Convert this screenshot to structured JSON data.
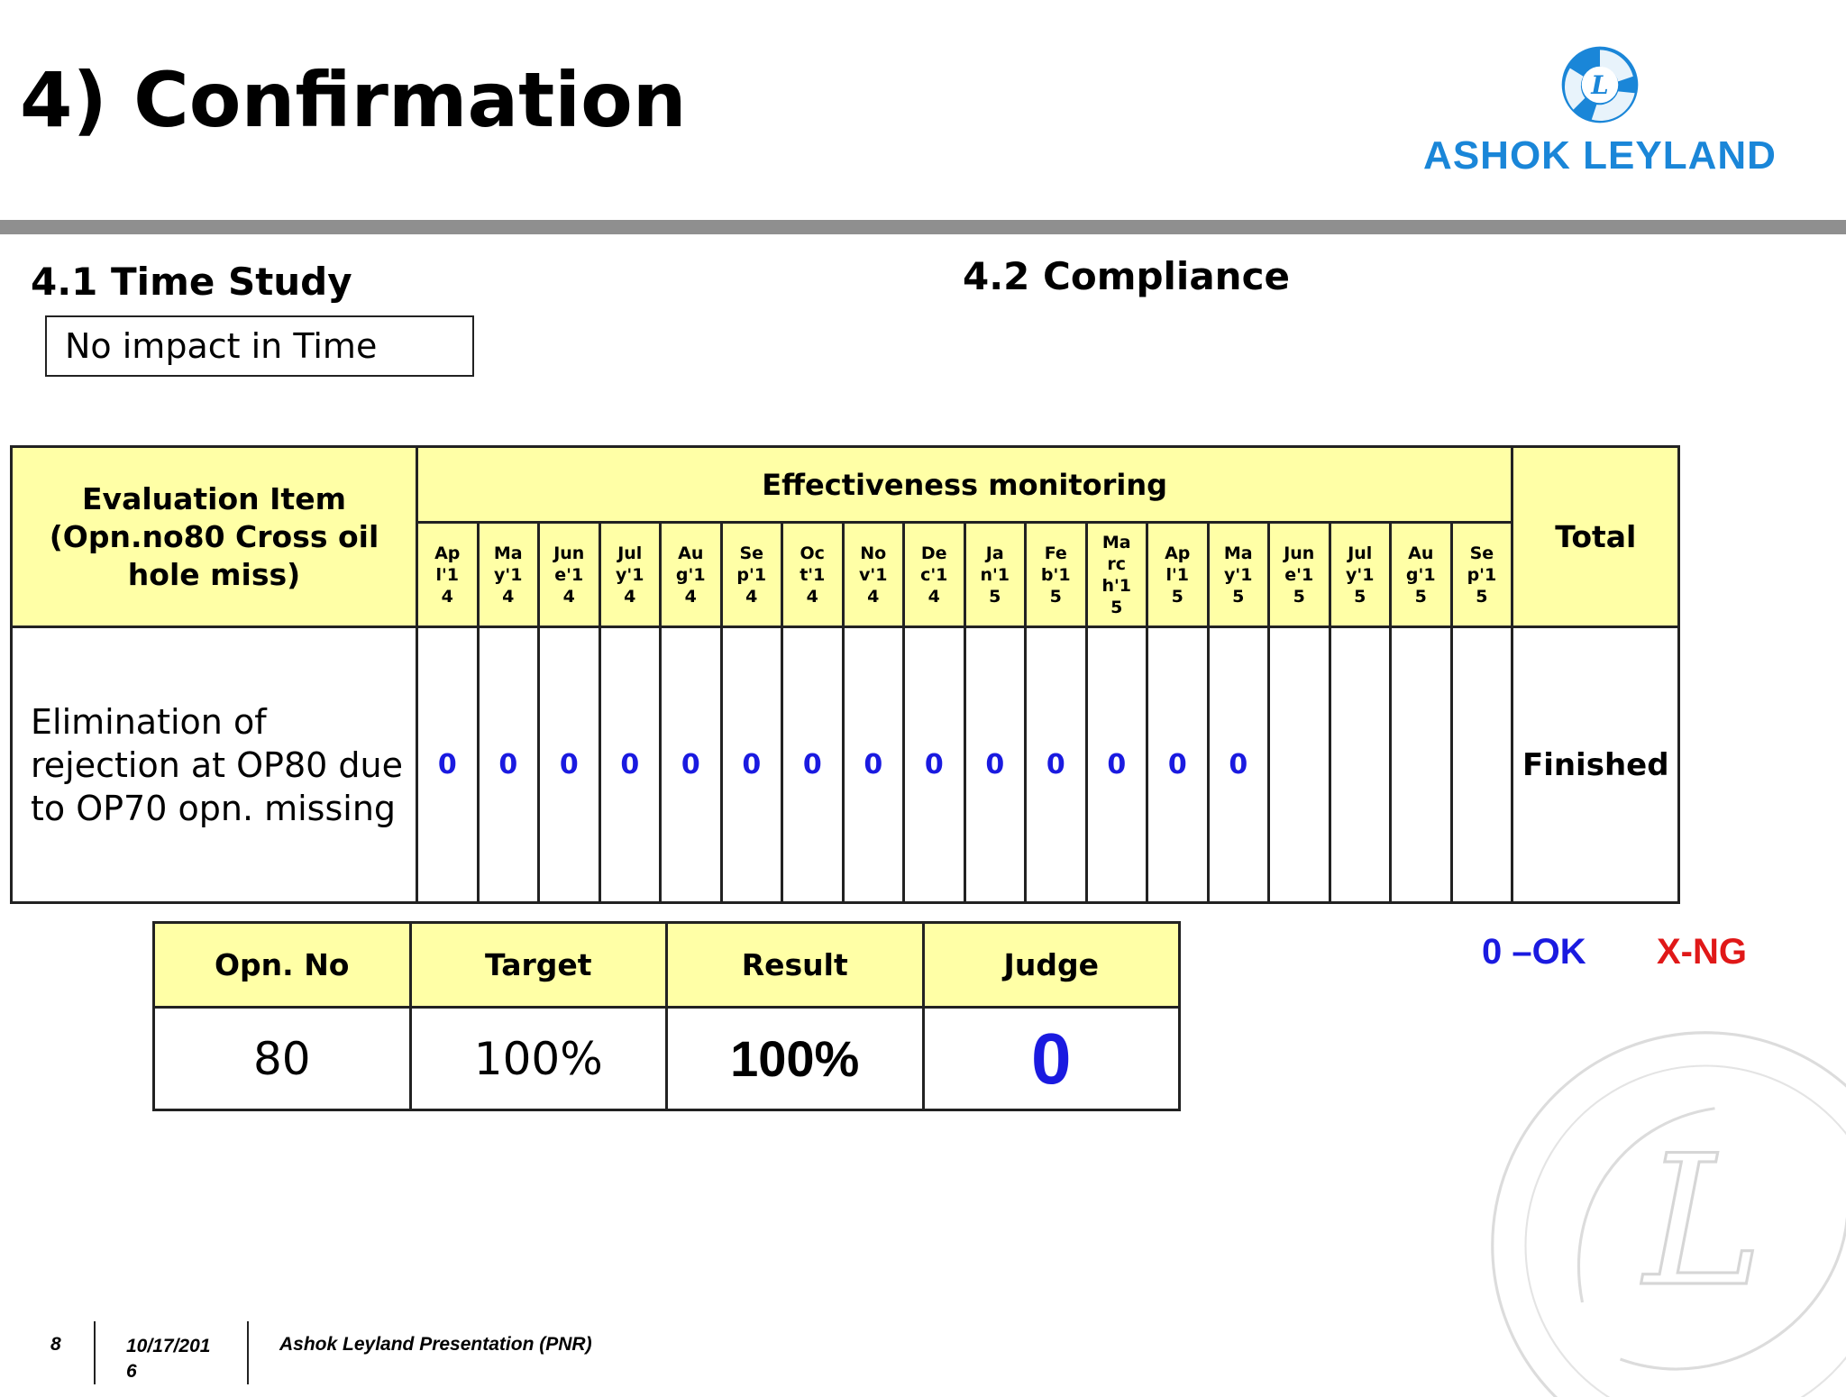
{
  "slide": {
    "title": "4) Confirmation"
  },
  "logo": {
    "text": "ASHOK LEYLAND",
    "emblem_letter": "L",
    "color": "#1a86d8"
  },
  "time_study": {
    "heading": "4.1 Time Study",
    "box_text": "No impact in Time"
  },
  "compliance": {
    "heading": "4.2 Compliance"
  },
  "effectiveness_table": {
    "eval_header_line1": "Evaluation Item",
    "eval_header_line2": "(Opn.no80 Cross oil hole miss)",
    "monitoring_header": "Effectiveness monitoring",
    "total_header": "Total",
    "months": [
      "Apl'14",
      "May'14",
      "June'14",
      "July'14",
      "Aug'14",
      "Sep'14",
      "Oct'14",
      "Nov'14",
      "Dec'14",
      "Jan'15",
      "Feb'15",
      "March'15",
      "Apl'15",
      "May'15",
      "June'15",
      "July'15",
      "Aug'15",
      "Sep'15"
    ],
    "item": "Elimination of rejection at OP80 due to OP70 opn. missing",
    "marks": [
      "0",
      "0",
      "0",
      "0",
      "0",
      "0",
      "0",
      "0",
      "0",
      "0",
      "0",
      "0",
      "0",
      "0",
      "",
      "",
      "",
      ""
    ],
    "total": "Finished"
  },
  "judge_table": {
    "headers": {
      "opn": "Opn. No",
      "target": "Target",
      "result": "Result",
      "judge": "Judge"
    },
    "values": {
      "opn": "80",
      "target": "100%",
      "result": "100%",
      "judge": "0"
    }
  },
  "legend": {
    "ok": "0 –OK",
    "ng": "X-NG",
    "ok_color": "#1a1ae0",
    "ng_color": "#e01818"
  },
  "footer": {
    "page": "8",
    "date": "10/17/2016",
    "title": "Ashok Leyland Presentation (PNR)"
  }
}
